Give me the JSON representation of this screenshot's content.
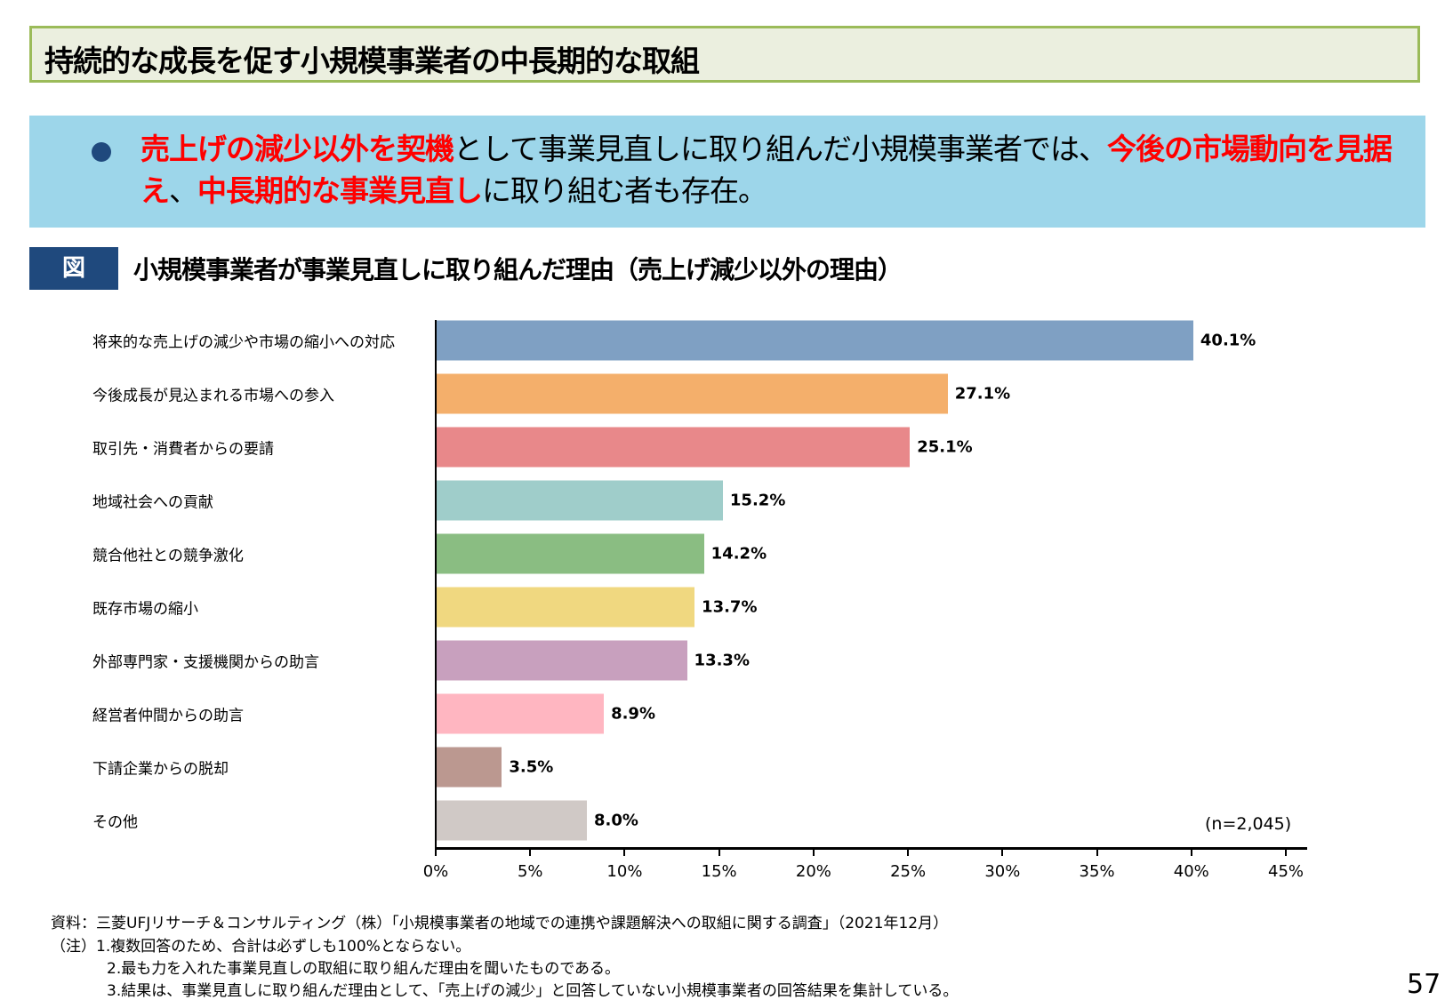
{
  "header": {
    "title": "持続的な成長を促す小規模事業者の中長期的な取組"
  },
  "summary": {
    "parts": [
      {
        "text": "売上げの減少以外を契機",
        "red": true
      },
      {
        "text": "として事業見直しに取り組んだ小規模事業者では、",
        "red": false
      },
      {
        "text": "今後の市場動向を見据え",
        "red": true
      },
      {
        "text": "、",
        "red": false
      },
      {
        "text": "中長期的な事業見直し",
        "red": true
      },
      {
        "text": "に取り組む者も存在。",
        "red": false
      }
    ]
  },
  "figure": {
    "label": "図",
    "title": "小規模事業者が事業見直しに取り組んだ理由（売上げ減少以外の理由）"
  },
  "chart_data": {
    "type": "bar",
    "orientation": "horizontal",
    "categories": [
      "将来的な売上げの減少や市場の縮小への対応",
      "今後成長が見込まれる市場への参入",
      "取引先・消費者からの要請",
      "地域社会への貢献",
      "競合他社との競争激化",
      "既存市場の縮小",
      "外部専門家・支援機関からの助言",
      "経営者仲間からの助言",
      "下請企業からの脱却",
      "その他"
    ],
    "values": [
      40.1,
      27.1,
      25.1,
      15.2,
      14.2,
      13.7,
      13.3,
      8.9,
      3.5,
      8.0
    ],
    "value_labels": [
      "40.1%",
      "27.1%",
      "25.1%",
      "15.2%",
      "14.2%",
      "13.7%",
      "13.3%",
      "8.9%",
      "3.5%",
      "8.0%"
    ],
    "colors": [
      "#7FA0C3",
      "#F4AF6B",
      "#E8888A",
      "#9FCDCA",
      "#8ABD82",
      "#F0D880",
      "#C8A0BE",
      "#FFB6C1",
      "#BB9890",
      "#D0C9C6"
    ],
    "xlim": [
      0,
      45
    ],
    "ticks": [
      "0%",
      "5%",
      "10%",
      "15%",
      "20%",
      "25%",
      "30%",
      "35%",
      "40%",
      "45%"
    ],
    "annotation": "(n=2,045)"
  },
  "footer": {
    "source": "資料：三菱UFJリサーチ＆コンサルティング（株）「小規模事業者の地域での連携や課題解決への取組に関する調査」（2021年12月）",
    "note1": "（注）1.複数回答のため、合計は必ずしも100%とならない。",
    "note2": "2.最も力を入れた事業見直しの取組に取り組んだ理由を聞いたものである。",
    "note3": "3.結果は、事業見直しに取り組んだ理由として、「売上げの減少」と回答していない小規模事業者の回答結果を集計している。",
    "page": "57"
  }
}
